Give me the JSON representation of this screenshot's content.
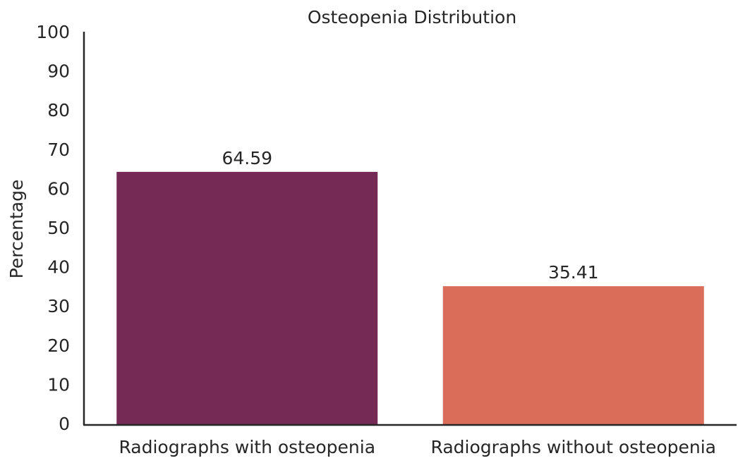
{
  "chart_data": {
    "type": "bar",
    "title": "Osteopenia Distribution",
    "ylabel": "Percentage",
    "categories": [
      "Radiographs with osteopenia",
      "Radiographs without osteopenia"
    ],
    "values": [
      64.59,
      35.41
    ],
    "colors": [
      "#752a55",
      "#da6d59"
    ],
    "ylim": [
      0,
      100
    ],
    "yticks": [
      0,
      10,
      20,
      30,
      40,
      50,
      60,
      70,
      80,
      90,
      100
    ],
    "grid": false
  }
}
